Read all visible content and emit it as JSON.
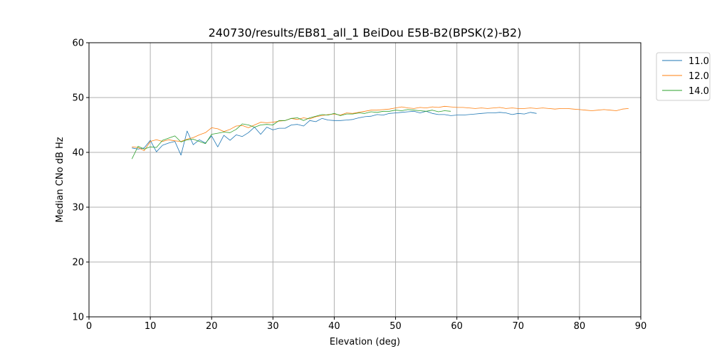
{
  "chart_data": {
    "type": "line",
    "title": "240730/results/EB81_all_1 BeiDou E5B-B2(BPSK(2)-B2)",
    "xlabel": "Elevation (deg)",
    "ylabel": "Median CNo dB Hz",
    "xlim": [
      0,
      90
    ],
    "ylim": [
      10,
      60
    ],
    "xticks": [
      0,
      10,
      20,
      30,
      40,
      50,
      60,
      70,
      80,
      90
    ],
    "yticks": [
      10,
      20,
      30,
      40,
      50,
      60
    ],
    "grid": true,
    "legend_position": "top-right, outside plot",
    "series": [
      {
        "name": "11.0",
        "color": "#1f77b4",
        "x": [
          7,
          8,
          9,
          10,
          11,
          12,
          13,
          14,
          15,
          16,
          17,
          18,
          19,
          20,
          21,
          22,
          23,
          24,
          25,
          26,
          27,
          28,
          29,
          30,
          31,
          32,
          33,
          34,
          35,
          36,
          37,
          38,
          39,
          40,
          41,
          42,
          43,
          44,
          45,
          46,
          47,
          48,
          49,
          50,
          51,
          52,
          53,
          54,
          55,
          56,
          57,
          58,
          59,
          60,
          61,
          62,
          63,
          64,
          65,
          66,
          67,
          68,
          69,
          70,
          71,
          72,
          73
        ],
        "y": [
          40.8,
          40.6,
          40.8,
          42.2,
          40.1,
          41.3,
          41.7,
          42.0,
          39.5,
          43.9,
          41.4,
          42.3,
          41.7,
          43.0,
          41.0,
          43.1,
          42.2,
          43.2,
          42.9,
          43.6,
          44.6,
          43.3,
          44.6,
          44.1,
          44.4,
          44.4,
          45.0,
          45.1,
          44.8,
          45.8,
          45.6,
          46.2,
          45.9,
          45.8,
          45.8,
          45.9,
          46.0,
          46.3,
          46.5,
          46.6,
          46.9,
          46.8,
          47.1,
          47.2,
          47.3,
          47.4,
          47.5,
          47.2,
          47.5,
          47.1,
          46.9,
          46.9,
          46.7,
          46.8,
          46.8,
          46.9,
          47.0,
          47.1,
          47.2,
          47.2,
          47.3,
          47.2,
          46.9,
          47.1,
          47.0,
          47.3,
          47.1
        ]
      },
      {
        "name": "12.0",
        "color": "#ff7f0e",
        "x": [
          7,
          8,
          9,
          10,
          11,
          12,
          13,
          14,
          15,
          16,
          17,
          18,
          19,
          20,
          21,
          22,
          23,
          24,
          25,
          26,
          27,
          28,
          29,
          30,
          31,
          32,
          33,
          34,
          35,
          36,
          37,
          38,
          39,
          40,
          41,
          42,
          43,
          44,
          45,
          46,
          47,
          48,
          49,
          50,
          51,
          52,
          53,
          54,
          55,
          56,
          57,
          58,
          59,
          60,
          61,
          62,
          63,
          64,
          65,
          66,
          67,
          68,
          69,
          70,
          71,
          72,
          73,
          74,
          75,
          76,
          77,
          78,
          79,
          80,
          81,
          82,
          83,
          84,
          85,
          86,
          87,
          88
        ],
        "y": [
          41.0,
          40.9,
          40.3,
          42.0,
          42.3,
          42.0,
          42.3,
          42.1,
          42.0,
          42.4,
          42.7,
          43.2,
          43.6,
          44.5,
          44.3,
          43.8,
          44.2,
          44.8,
          44.9,
          44.5,
          45.0,
          45.5,
          45.4,
          45.5,
          45.7,
          45.8,
          46.2,
          46.0,
          46.3,
          46.1,
          46.5,
          46.7,
          46.9,
          47.0,
          46.8,
          47.2,
          47.1,
          47.3,
          47.5,
          47.7,
          47.7,
          47.8,
          47.9,
          48.1,
          48.3,
          48.1,
          48.0,
          48.2,
          48.1,
          48.3,
          48.2,
          48.4,
          48.3,
          48.2,
          48.2,
          48.1,
          48.0,
          48.1,
          48.0,
          48.1,
          48.2,
          48.0,
          48.1,
          48.0,
          48.0,
          48.1,
          48.0,
          48.1,
          48.0,
          47.9,
          48.0,
          48.0,
          47.9,
          47.8,
          47.7,
          47.6,
          47.7,
          47.8,
          47.7,
          47.6,
          47.9,
          48.0
        ]
      },
      {
        "name": "14.0",
        "color": "#2ca02c",
        "x": [
          7,
          8,
          9,
          10,
          11,
          12,
          13,
          14,
          15,
          16,
          17,
          18,
          19,
          20,
          21,
          22,
          23,
          24,
          25,
          26,
          27,
          28,
          29,
          30,
          31,
          32,
          33,
          34,
          35,
          36,
          37,
          38,
          39,
          40,
          41,
          42,
          43,
          44,
          45,
          46,
          47,
          48,
          49,
          50,
          51,
          52,
          53,
          54,
          55,
          56,
          57,
          58,
          59
        ],
        "y": [
          38.8,
          41.1,
          40.6,
          41.0,
          40.9,
          42.2,
          42.6,
          43.0,
          41.9,
          42.3,
          42.4,
          42.0,
          41.6,
          43.3,
          43.5,
          43.7,
          43.6,
          44.2,
          45.2,
          45.0,
          44.6,
          45.0,
          45.1,
          45.0,
          45.8,
          45.8,
          46.2,
          46.3,
          45.8,
          46.3,
          46.6,
          46.9,
          46.8,
          47.1,
          46.7,
          47.0,
          47.0,
          47.2,
          47.1,
          47.4,
          47.3,
          47.5,
          47.5,
          47.7,
          47.6,
          47.8,
          47.7,
          47.6,
          47.5,
          47.7,
          47.4,
          47.6,
          47.5
        ]
      }
    ]
  }
}
